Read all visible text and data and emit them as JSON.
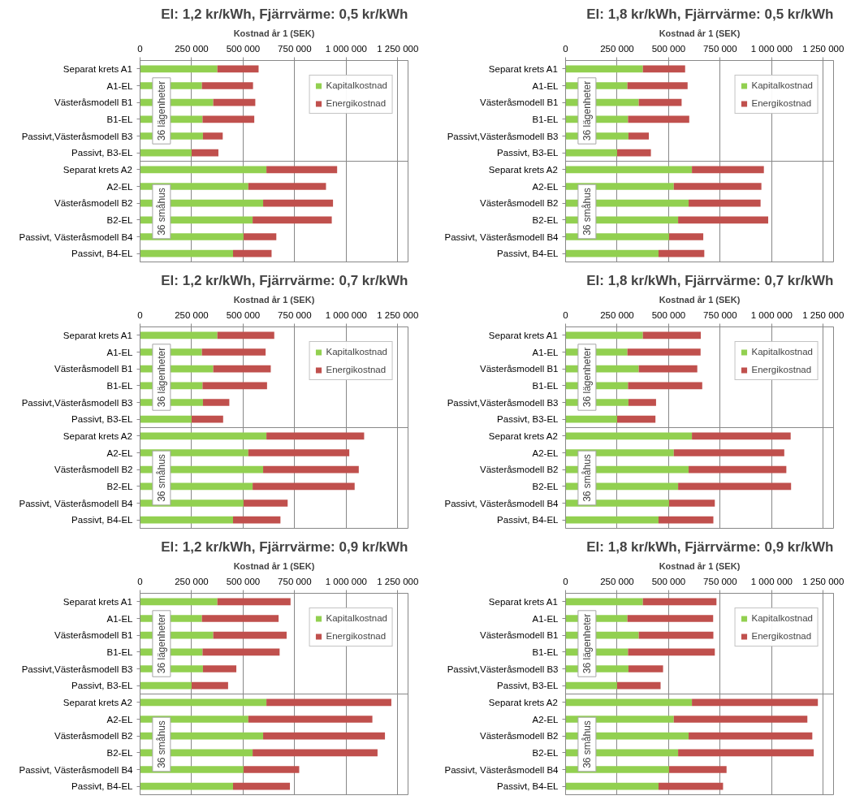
{
  "chart_data": [
    {
      "type": "bar",
      "orientation": "horizontal",
      "stacked": true,
      "title": "El: 1,2 kr/kWh, Fjärrvärme: 0,5 kr/kWh",
      "xlabel": "Kostnad år 1 (SEK)",
      "categories": [
        "Separat krets A1",
        "A1-EL",
        "Västeråsmodell B1",
        "B1-EL",
        "Passivt,Västeråsmodell B3",
        "Passivt, B3-EL",
        "Separat krets A2",
        "A2-EL",
        "Västeråsmodell B2",
        "B2-EL",
        "Passivt, Västeråsmodell B4",
        "Passivt, B4-EL"
      ],
      "series": [
        {
          "name": "Kapitalkostnad",
          "color": "#92d050",
          "values": [
            375000,
            300000,
            355000,
            303000,
            305000,
            250000,
            613000,
            525000,
            597000,
            546000,
            502000,
            451000
          ]
        },
        {
          "name": "Energikostnad",
          "color": "#c0504d",
          "values": [
            200000,
            248000,
            204000,
            251000,
            96000,
            130000,
            343000,
            377000,
            339000,
            384000,
            159000,
            187000
          ]
        }
      ],
      "xlim": [
        0,
        1300000
      ],
      "xticks": [
        0,
        {
          "value": 250000,
          "label": "250 000"
        },
        {
          "value": 500000,
          "label": "500 000"
        },
        {
          "value": 750000,
          "label": "750 000"
        },
        {
          "value": 1000000,
          "label": "1 000 000"
        },
        {
          "value": 1250000,
          "label": "1 250 000"
        }
      ],
      "grid": "x",
      "legend": "top right",
      "annotations": [
        "36 lägenheter",
        "36 småhus"
      ]
    },
    {
      "type": "bar",
      "orientation": "horizontal",
      "stacked": true,
      "title": "El: 1,8 kr/kWh, Fjärrvärme: 0,5 kr/kWh",
      "xlabel": "Kostnad år 1 (SEK)",
      "categories": [
        "Separat krets A1",
        "A1-EL",
        "Västeråsmodell B1",
        "B1-EL",
        "Passivt,Västeråsmodell B3",
        "Passivt, B3-EL",
        "Separat krets A2",
        "A2-EL",
        "Västeråsmodell B2",
        "B2-EL",
        "Passivt, Västeråsmodell B4",
        "Passivt, B4-EL"
      ],
      "series": [
        {
          "name": "Kapitalkostnad",
          "color": "#92d050",
          "values": [
            375000,
            300000,
            355000,
            303000,
            305000,
            250000,
            613000,
            525000,
            597000,
            546000,
            502000,
            451000
          ]
        },
        {
          "name": "Energikostnad",
          "color": "#c0504d",
          "values": [
            205000,
            292000,
            208000,
            297000,
            99000,
            164000,
            349000,
            425000,
            349000,
            437000,
            166000,
            222000
          ]
        }
      ],
      "xlim": [
        0,
        1300000
      ],
      "xticks": [
        0,
        {
          "value": 250000,
          "label": "250 000"
        },
        {
          "value": 500000,
          "label": "500 000"
        },
        {
          "value": 750000,
          "label": "750 000"
        },
        {
          "value": 1000000,
          "label": "1 000 000"
        },
        {
          "value": 1250000,
          "label": "1 250 000"
        }
      ],
      "grid": "x",
      "legend": "top right",
      "annotations": [
        "36 lägenheter",
        "36 småhus"
      ]
    },
    {
      "type": "bar",
      "orientation": "horizontal",
      "stacked": true,
      "title": "El: 1,2 kr/kWh, Fjärrvärme: 0,7 kr/kWh",
      "xlabel": "Kostnad år 1 (SEK)",
      "categories": [
        "Separat krets A1",
        "A1-EL",
        "Västeråsmodell B1",
        "B1-EL",
        "Passivt,Västeråsmodell B3",
        "Passivt, B3-EL",
        "Separat krets A2",
        "A2-EL",
        "Västeråsmodell B2",
        "B2-EL",
        "Passivt, Västeråsmodell B4",
        "Passivt, B4-EL"
      ],
      "series": [
        {
          "name": "Kapitalkostnad",
          "color": "#92d050",
          "values": [
            375000,
            300000,
            355000,
            303000,
            305000,
            250000,
            613000,
            525000,
            597000,
            546000,
            502000,
            451000
          ]
        },
        {
          "name": "Energikostnad",
          "color": "#c0504d",
          "values": [
            276000,
            309000,
            279000,
            313000,
            128000,
            153000,
            474000,
            490000,
            464000,
            495000,
            214000,
            230000
          ]
        }
      ],
      "xlim": [
        0,
        1300000
      ],
      "xticks": [
        0,
        {
          "value": 250000,
          "label": "250 000"
        },
        {
          "value": 500000,
          "label": "500 000"
        },
        {
          "value": 750000,
          "label": "750 000"
        },
        {
          "value": 1000000,
          "label": "1 000 000"
        },
        {
          "value": 1250000,
          "label": "1 250 000"
        }
      ],
      "grid": "x",
      "legend": "top right",
      "annotations": [
        "36 lägenheter",
        "36 småhus"
      ]
    },
    {
      "type": "bar",
      "orientation": "horizontal",
      "stacked": true,
      "title": "El: 1,8 kr/kWh, Fjärrvärme: 0,7 kr/kWh",
      "xlabel": "Kostnad år 1 (SEK)",
      "categories": [
        "Separat krets A1",
        "A1-EL",
        "Västeråsmodell B1",
        "B1-EL",
        "Passivt,Västeråsmodell B3",
        "Passivt, B3-EL",
        "Separat krets A2",
        "A2-EL",
        "Västeråsmodell B2",
        "B2-EL",
        "Passivt, Västeråsmodell B4",
        "Passivt, B4-EL"
      ],
      "series": [
        {
          "name": "Kapitalkostnad",
          "color": "#92d050",
          "values": [
            375000,
            300000,
            355000,
            303000,
            305000,
            250000,
            613000,
            525000,
            597000,
            546000,
            502000,
            451000
          ]
        },
        {
          "name": "Energikostnad",
          "color": "#c0504d",
          "values": [
            281000,
            355000,
            284000,
            360000,
            134000,
            186000,
            479000,
            536000,
            474000,
            548000,
            222000,
            266000
          ]
        }
      ],
      "xlim": [
        0,
        1300000
      ],
      "xticks": [
        0,
        {
          "value": 250000,
          "label": "250 000"
        },
        {
          "value": 500000,
          "label": "500 000"
        },
        {
          "value": 750000,
          "label": "750 000"
        },
        {
          "value": 1000000,
          "label": "1 000 000"
        },
        {
          "value": 1250000,
          "label": "1 250 000"
        }
      ],
      "grid": "x",
      "legend": "top right",
      "annotations": [
        "36 lägenheter",
        "36 småhus"
      ]
    },
    {
      "type": "bar",
      "orientation": "horizontal",
      "stacked": true,
      "title": "El: 1,2 kr/kWh, Fjärrvärme: 0,9 kr/kWh",
      "xlabel": "Kostnad år 1 (SEK)",
      "categories": [
        "Separat krets A1",
        "A1-EL",
        "Västeråsmodell B1",
        "B1-EL",
        "Passivt,Västeråsmodell B3",
        "Passivt, B3-EL",
        "Separat krets A2",
        "A2-EL",
        "Västeråsmodell B2",
        "B2-EL",
        "Passivt, Västeråsmodell B4",
        "Passivt, B4-EL"
      ],
      "series": [
        {
          "name": "Kapitalkostnad",
          "color": "#92d050",
          "values": [
            375000,
            300000,
            355000,
            303000,
            305000,
            250000,
            613000,
            525000,
            597000,
            546000,
            502000,
            451000
          ]
        },
        {
          "name": "Energikostnad",
          "color": "#c0504d",
          "values": [
            355000,
            372000,
            356000,
            374000,
            162000,
            177000,
            606000,
            602000,
            591000,
            606000,
            270000,
            276000
          ]
        }
      ],
      "xlim": [
        0,
        1300000
      ],
      "xticks": [
        0,
        {
          "value": 250000,
          "label": "250 000"
        },
        {
          "value": 500000,
          "label": "500 000"
        },
        {
          "value": 750000,
          "label": "750 000"
        },
        {
          "value": 1000000,
          "label": "1 000 000"
        },
        {
          "value": 1250000,
          "label": "1 250 000"
        }
      ],
      "grid": "x",
      "legend": "top right",
      "annotations": [
        "36 lägenheter",
        "36 småhus"
      ]
    },
    {
      "type": "bar",
      "orientation": "horizontal",
      "stacked": true,
      "title": "El: 1,8 kr/kWh, Fjärrvärme: 0,9 kr/kWh",
      "xlabel": "Kostnad år 1 (SEK)",
      "categories": [
        "Separat krets A1",
        "A1-EL",
        "Västeråsmodell B1",
        "B1-EL",
        "Passivt,Västeråsmodell B3",
        "Passivt, B3-EL",
        "Separat krets A2",
        "A2-EL",
        "Västeråsmodell B2",
        "B2-EL",
        "Passivt, Västeråsmodell B4",
        "Passivt, B4-EL"
      ],
      "series": [
        {
          "name": "Kapitalkostnad",
          "color": "#92d050",
          "values": [
            375000,
            300000,
            355000,
            303000,
            305000,
            250000,
            613000,
            525000,
            597000,
            546000,
            502000,
            451000
          ]
        },
        {
          "name": "Energikostnad",
          "color": "#c0504d",
          "values": [
            357000,
            416000,
            362000,
            421000,
            168000,
            211000,
            611000,
            648000,
            600000,
            658000,
            279000,
            313000
          ]
        }
      ],
      "xlim": [
        0,
        1300000
      ],
      "xticks": [
        0,
        {
          "value": 250000,
          "label": "250 000"
        },
        {
          "value": 500000,
          "label": "500 000"
        },
        {
          "value": 750000,
          "label": "750 000"
        },
        {
          "value": 1000000,
          "label": "1 000 000"
        },
        {
          "value": 1250000,
          "label": "1 250 000"
        }
      ],
      "grid": "x",
      "legend": "top right",
      "annotations": [
        "36 lägenheter",
        "36 småhus"
      ]
    }
  ]
}
